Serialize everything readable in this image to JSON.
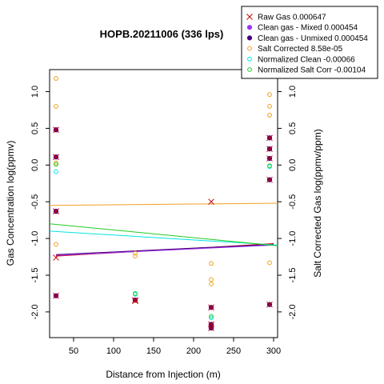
{
  "chart_data": {
    "type": "scatter",
    "title": "HOPB.20211006 (336 lps)",
    "xlabel": "Distance from Injection (m)",
    "ylabel": "Gas Concentration log(ppmv)",
    "y2label": "Salt Corrected Gas log(ppmv/ppm)",
    "xlim": [
      20,
      305
    ],
    "ylim": [
      -2.35,
      1.3
    ],
    "y2lim": [
      -2.35,
      1.3
    ],
    "x_ticks": [
      50,
      100,
      150,
      200,
      250,
      300
    ],
    "y_ticks": [
      -2.0,
      -1.5,
      -1.0,
      -0.5,
      0.0,
      0.5,
      1.0
    ],
    "y2_ticks": [
      -2.0,
      -1.5,
      -1.0,
      -0.5,
      0.0,
      0.5,
      1.0
    ],
    "grid": false,
    "legend_position": "top-right",
    "series": [
      {
        "name": "Raw Gas 0.000647",
        "color": "#cc0000",
        "marker": "x",
        "axis": "left",
        "points": [
          [
            28,
            0.48
          ],
          [
            28,
            0.11
          ],
          [
            28,
            -0.63
          ],
          [
            28,
            -1.26
          ],
          [
            28,
            -1.78
          ],
          [
            127,
            -1.84
          ],
          [
            127,
            -1.85
          ],
          [
            222,
            -0.5
          ],
          [
            222,
            -1.94
          ],
          [
            222,
            -2.17
          ],
          [
            222,
            -2.22
          ],
          [
            295,
            0.37
          ],
          [
            295,
            0.22
          ],
          [
            295,
            0.09
          ],
          [
            295,
            -0.2
          ],
          [
            295,
            -1.9
          ]
        ],
        "fit": {
          "x": [
            28,
            300
          ],
          "y": [
            -1.24,
            -1.07
          ]
        }
      },
      {
        "name": "Clean gas - Mixed 0.000454",
        "color": "#9933ff",
        "marker": "dot",
        "axis": "left",
        "points": [
          [
            28,
            0.48
          ],
          [
            28,
            0.11
          ],
          [
            28,
            -0.63
          ],
          [
            28,
            -1.78
          ],
          [
            127,
            -1.84
          ],
          [
            222,
            -1.94
          ],
          [
            222,
            -2.17
          ],
          [
            222,
            -2.22
          ],
          [
            295,
            0.37
          ],
          [
            295,
            0.22
          ],
          [
            295,
            0.09
          ],
          [
            295,
            -0.2
          ],
          [
            295,
            -1.9
          ]
        ],
        "fit": {
          "x": [
            28,
            300
          ],
          "y": [
            -1.23,
            -1.09
          ]
        }
      },
      {
        "name": "Clean gas - Unmixed 0.000454",
        "color": "#4b0082",
        "marker": "dot",
        "axis": "left",
        "points": [
          [
            28,
            0.48
          ],
          [
            28,
            0.11
          ],
          [
            28,
            -0.63
          ],
          [
            28,
            -1.78
          ],
          [
            127,
            -1.84
          ],
          [
            222,
            -1.94
          ],
          [
            222,
            -2.17
          ],
          [
            222,
            -2.22
          ],
          [
            295,
            0.37
          ],
          [
            295,
            0.22
          ],
          [
            295,
            0.09
          ],
          [
            295,
            -0.2
          ],
          [
            295,
            -1.9
          ]
        ],
        "fit": {
          "x": [
            28,
            300
          ],
          "y": [
            -1.22,
            -1.08
          ]
        }
      },
      {
        "name": "Salt Corrected 8.58e-05",
        "color": "#f0a020",
        "marker": "circle",
        "axis": "right",
        "points": [
          [
            28,
            1.18
          ],
          [
            28,
            0.8
          ],
          [
            28,
            0.03
          ],
          [
            28,
            -1.08
          ],
          [
            127,
            -1.2
          ],
          [
            127,
            -1.24
          ],
          [
            222,
            -1.34
          ],
          [
            222,
            -1.56
          ],
          [
            222,
            -1.62
          ],
          [
            295,
            0.96
          ],
          [
            295,
            0.8
          ],
          [
            295,
            0.68
          ],
          [
            295,
            -1.33
          ]
        ],
        "fit": {
          "x": [
            20,
            305
          ],
          "y": [
            -0.55,
            -0.52
          ]
        }
      },
      {
        "name": "Normalized Clean -0.00066",
        "color": "#00e5e5",
        "marker": "circle",
        "axis": "right",
        "points": [
          [
            28,
            -0.09
          ],
          [
            127,
            -1.76
          ],
          [
            222,
            -2.08
          ],
          [
            295,
            -0.02
          ]
        ],
        "fit": {
          "x": [
            20,
            305
          ],
          "y": [
            -0.9,
            -1.09
          ]
        }
      },
      {
        "name": "Normalized Salt Corr -0.00104",
        "color": "#22cc22",
        "marker": "circle",
        "axis": "right",
        "points": [
          [
            28,
            0.01
          ],
          [
            127,
            -1.75
          ],
          [
            222,
            -2.06
          ],
          [
            295,
            -0.01
          ]
        ],
        "fit": {
          "x": [
            20,
            305
          ],
          "y": [
            -0.8,
            -1.1
          ]
        }
      }
    ]
  }
}
